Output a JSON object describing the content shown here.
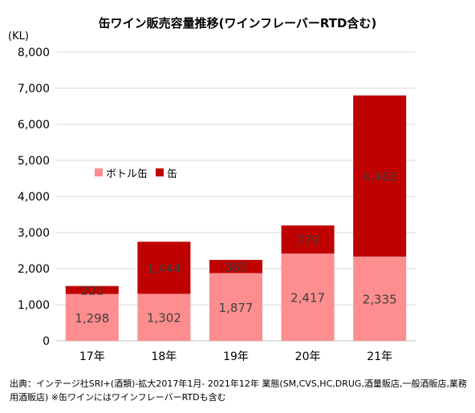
{
  "title": "缶ワイン販売容量推移(ワインフレーバーRTD含む)",
  "unit_label": "(KL)",
  "source_text": "出典：インテージ社SRI+(酒類)-拡大2017年1月- 2021年12年 業態(SM,CVS,HC,DRUG,酒量販店,一般酒販店,業務用酒販店) ※缶ワインにはワインフレーバーRTDも含む",
  "colors": {
    "bottle": "#fd8d8e",
    "can": "#bf0100",
    "grid": "#d9d9d9"
  },
  "chart_data": {
    "type": "bar",
    "stacked": true,
    "categories": [
      "17年",
      "18年",
      "19年",
      "20年",
      "21年"
    ],
    "series": [
      {
        "name": "ボトル缶",
        "values": [
          1298,
          1302,
          1877,
          2417,
          2335
        ],
        "labels": [
          "1,298",
          "1,302",
          "1,877",
          "2,417",
          "2,335"
        ]
      },
      {
        "name": "缶",
        "values": [
          221,
          1444,
          365,
          779,
          4463
        ],
        "labels": [
          "221",
          "1,444",
          "365",
          "779",
          "4,463"
        ]
      }
    ],
    "ylim": [
      0,
      8000
    ],
    "yticks": [
      "0",
      "1,000",
      "2,000",
      "3,000",
      "4,000",
      "5,000",
      "6,000",
      "7,000",
      "8,000"
    ],
    "grid": true,
    "legend_position": "inside-top-left"
  }
}
